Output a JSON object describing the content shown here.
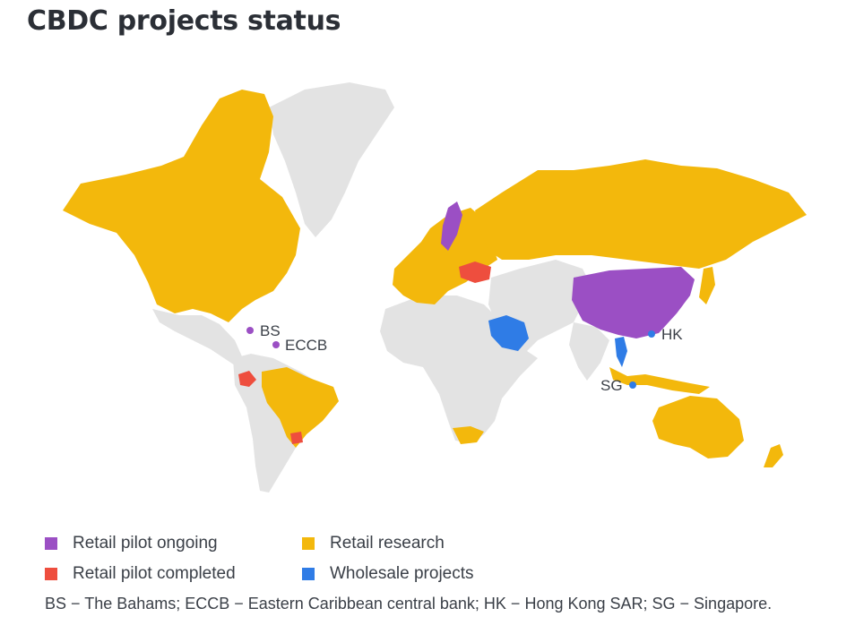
{
  "title": "CBDC projects status",
  "colors": {
    "retail_pilot_ongoing": "#9b4fc4",
    "retail_pilot_completed": "#ee4e3e",
    "retail_research": "#f3b80c",
    "wholesale_projects": "#2f7ce6",
    "no_project": "#e3e3e3"
  },
  "legend": {
    "retail_pilot_ongoing": "Retail pilot ongoing",
    "retail_pilot_completed": "Retail pilot completed",
    "retail_research": "Retail research",
    "wholesale_projects": "Wholesale projects"
  },
  "markers": {
    "bs": "BS",
    "eccb": "ECCB",
    "hk": "HK",
    "sg": "SG"
  },
  "footnote": "BS − The Bahams; ECCB − Eastern Caribbean central bank; HK − Hong Kong SAR; SG − Singapore."
}
